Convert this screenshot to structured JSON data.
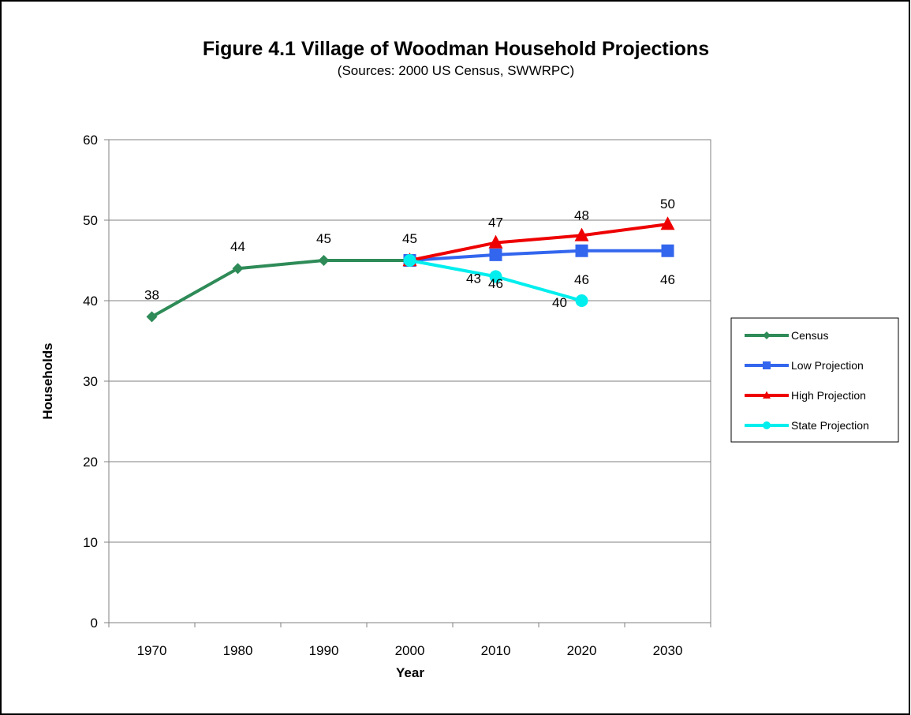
{
  "chart_data": {
    "type": "line",
    "title": "Figure 4.1 Village of Woodman Household Projections",
    "subtitle": "(Sources:  2000 US Census, SWWRPC)",
    "xlabel": "Year",
    "ylabel": "Households",
    "categories": [
      "1970",
      "1980",
      "1990",
      "2000",
      "2010",
      "2020",
      "2030"
    ],
    "yticks": [
      "0",
      "10",
      "20",
      "30",
      "40",
      "50",
      "60"
    ],
    "ylim": [
      0,
      60
    ],
    "grid": "horizontal",
    "legend": "right",
    "series": [
      {
        "name": "Census",
        "color": "#2e8b57",
        "marker": "diamond",
        "values": [
          38,
          44,
          45,
          45,
          null,
          null,
          null
        ],
        "labels": [
          "38",
          "44",
          "45",
          "45",
          null,
          null,
          null
        ]
      },
      {
        "name": "Low Projection",
        "color": "#3366ee",
        "marker": "square",
        "values": [
          null,
          null,
          null,
          45,
          45.7,
          46.2,
          46.2
        ],
        "labels": [
          null,
          null,
          null,
          null,
          "46",
          "46",
          "46"
        ]
      },
      {
        "name": "High Projection",
        "color": "#ee0000",
        "marker": "triangle",
        "values": [
          null,
          null,
          null,
          45,
          47.2,
          48.1,
          49.5
        ],
        "labels": [
          null,
          null,
          null,
          null,
          "47",
          "48",
          "50"
        ]
      },
      {
        "name": "State Projection",
        "color": "#00eeee",
        "marker": "circle",
        "values": [
          null,
          null,
          null,
          45,
          43,
          40,
          null
        ],
        "labels": [
          null,
          null,
          null,
          null,
          "43",
          "40",
          null
        ]
      }
    ]
  }
}
